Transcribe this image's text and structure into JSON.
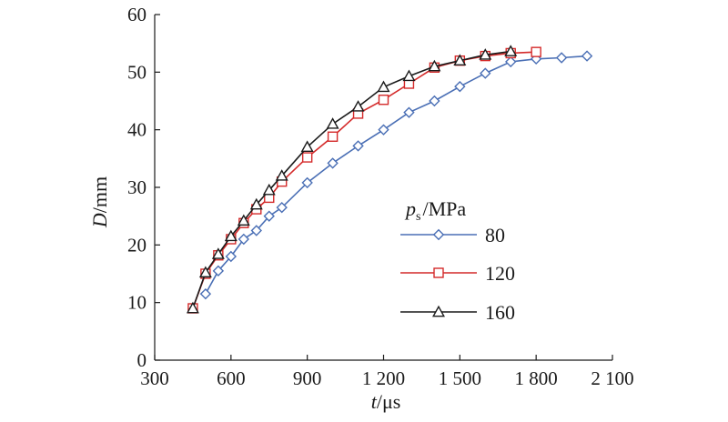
{
  "chart_data": {
    "type": "line",
    "xlabel": "t/μs",
    "xlabel_var": "t",
    "xlabel_unit": "/μs",
    "ylabel": "D/mm",
    "ylabel_var": "D",
    "ylabel_unit": "/mm",
    "xlim": [
      300,
      2100
    ],
    "ylim": [
      0,
      60
    ],
    "xticks": [
      300,
      600,
      900,
      1200,
      1500,
      1800,
      2100
    ],
    "xtick_labels": [
      "300",
      "600",
      "900",
      "1 200",
      "1 500",
      "1 800",
      "2 100"
    ],
    "yticks": [
      0,
      10,
      20,
      30,
      40,
      50,
      60
    ],
    "ytick_labels": [
      "0",
      "10",
      "20",
      "30",
      "40",
      "50",
      "60"
    ],
    "grid": false,
    "legend": {
      "title": "ps/MPa",
      "title_var": "p",
      "title_sub": "s",
      "title_unit": "/MPa",
      "placement": "right-middle"
    },
    "series": [
      {
        "name": "80",
        "color": "#4a6fb5",
        "marker": "diamond",
        "x": [
          500,
          550,
          600,
          650,
          700,
          750,
          800,
          900,
          1000,
          1100,
          1200,
          1300,
          1400,
          1500,
          1600,
          1700,
          1800,
          1900,
          2000
        ],
        "y": [
          11.5,
          15.5,
          18,
          21,
          22.5,
          25,
          26.5,
          30.8,
          34.2,
          37.2,
          40,
          43,
          45,
          47.5,
          49.8,
          51.8,
          52.3,
          52.5,
          52.8
        ]
      },
      {
        "name": "120",
        "color": "#d42a2a",
        "marker": "square",
        "x": [
          450,
          500,
          550,
          600,
          650,
          700,
          750,
          800,
          900,
          1000,
          1100,
          1200,
          1300,
          1400,
          1500,
          1600,
          1700,
          1800
        ],
        "y": [
          9,
          15,
          18.2,
          21,
          23.8,
          26.2,
          28.2,
          31,
          35.2,
          38.8,
          42.8,
          45.2,
          48,
          50.8,
          52,
          52.8,
          53.3,
          53.5
        ]
      },
      {
        "name": "160",
        "color": "#1a1a1a",
        "marker": "triangle",
        "x": [
          450,
          500,
          550,
          600,
          650,
          700,
          750,
          800,
          900,
          1000,
          1100,
          1200,
          1300,
          1400,
          1500,
          1600,
          1700
        ],
        "y": [
          9,
          15.2,
          18.4,
          21.5,
          24.2,
          27,
          29.5,
          32,
          37,
          41,
          44,
          47.4,
          49.3,
          51,
          52,
          53,
          53.6
        ]
      }
    ]
  }
}
